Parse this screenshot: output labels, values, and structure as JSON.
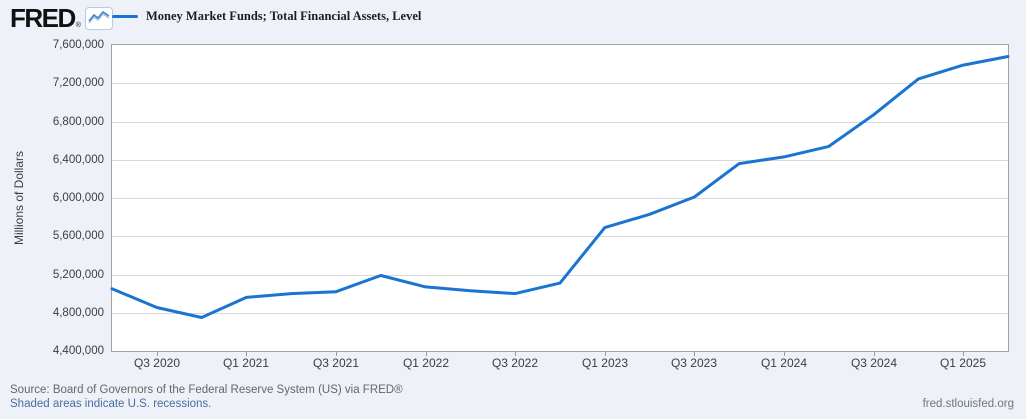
{
  "header": {
    "logo_text": "FRED",
    "registered_mark": "®",
    "legend": {
      "series_label": "Money Market Funds; Total Financial Assets, Level"
    }
  },
  "y_axis": {
    "title": "Millions of Dollars"
  },
  "footer": {
    "source_line": "Source: Board of Governors of the Federal Reserve System (US) via FRED®",
    "recession_note": "Shaded areas indicate U.S. recessions.",
    "site_link": "fred.stlouisfed.org"
  },
  "colors": {
    "line": "#1b74d0",
    "canvas_background": "#eef2f8",
    "plot_background": "#ffffff",
    "gridline": "#d9d9d9",
    "recession_link": "#4a6da0"
  },
  "chart_data": {
    "type": "line",
    "title": "Money Market Funds; Total Financial Assets, Level",
    "ylabel": "Millions of Dollars",
    "units": "Millions of Dollars",
    "frequency": "Quarterly",
    "x": [
      "Q2 2020",
      "Q3 2020",
      "Q4 2020",
      "Q1 2021",
      "Q2 2021",
      "Q3 2021",
      "Q4 2021",
      "Q1 2022",
      "Q2 2022",
      "Q3 2022",
      "Q4 2022",
      "Q1 2023",
      "Q2 2023",
      "Q3 2023",
      "Q4 2023",
      "Q1 2024",
      "Q2 2024",
      "Q3 2024",
      "Q4 2024",
      "Q1 2025",
      "Q2 2025"
    ],
    "values": [
      5050000,
      4855000,
      4750000,
      4960000,
      5000000,
      5020000,
      5190000,
      5070000,
      5030000,
      5000000,
      5110000,
      5690000,
      5830000,
      6010000,
      6360000,
      6430000,
      6540000,
      6870000,
      7245000,
      7390000,
      7480000
    ],
    "ylim": [
      4400000,
      7600000
    ],
    "y_ticks": {
      "labels": [
        "7,600,000",
        "7,200,000",
        "6,800,000",
        "6,400,000",
        "6,000,000",
        "5,600,000",
        "5,200,000",
        "4,800,000",
        "4,400,000"
      ],
      "values": [
        7600000,
        7200000,
        6800000,
        6400000,
        6000000,
        5600000,
        5200000,
        4800000,
        4400000
      ]
    },
    "x_ticks": {
      "labels": [
        "Q3 2020",
        "Q1 2021",
        "Q3 2021",
        "Q1 2022",
        "Q3 2022",
        "Q1 2023",
        "Q3 2023",
        "Q1 2024",
        "Q3 2024",
        "Q1 2025"
      ],
      "indices": [
        1,
        3,
        5,
        7,
        9,
        11,
        13,
        15,
        17,
        19
      ]
    },
    "grid": "horizontal",
    "legend_position": "top"
  }
}
